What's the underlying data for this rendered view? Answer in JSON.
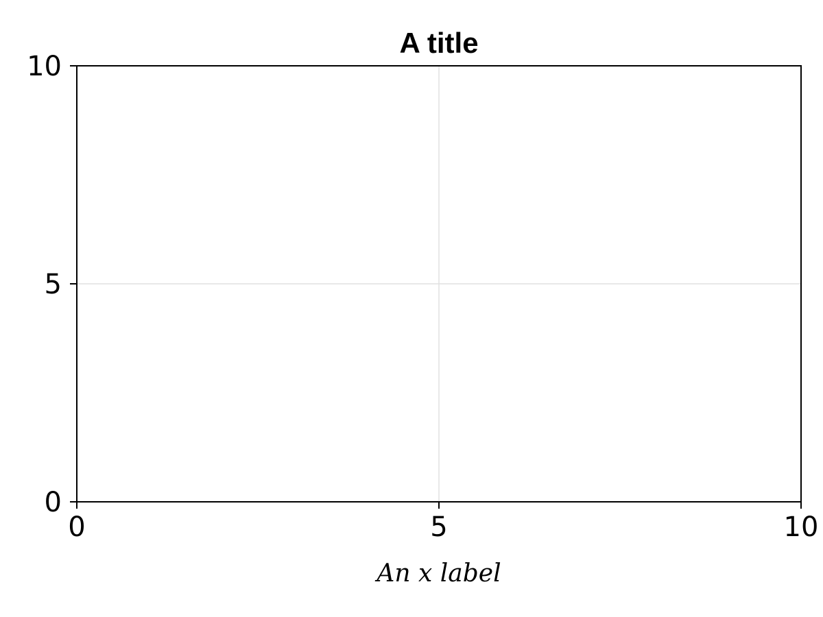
{
  "chart_data": {
    "type": "line",
    "title": "A title",
    "xlabel": "An x label",
    "ylabel": "",
    "xlim": [
      0,
      10
    ],
    "ylim": [
      0,
      10
    ],
    "xticks": [
      0,
      5,
      10
    ],
    "yticks": [
      0,
      5,
      10
    ],
    "xtick_labels": [
      "0",
      "5",
      "10"
    ],
    "ytick_labels": [
      "0",
      "5",
      "10"
    ],
    "grid": true,
    "series": [],
    "colors": {
      "grid": "#e0e0e0",
      "axis": "#000000"
    }
  }
}
